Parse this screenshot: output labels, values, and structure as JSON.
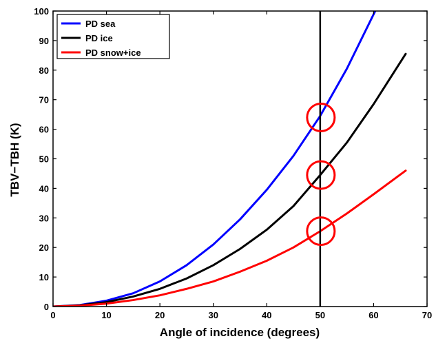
{
  "chart_data": {
    "type": "line",
    "title": "",
    "xlabel": "Angle of incidence (degrees)",
    "ylabel": "TBV−TBH (K)",
    "xlim": [
      0,
      70
    ],
    "ylim": [
      0,
      100
    ],
    "x_ticks": [
      0,
      10,
      20,
      30,
      40,
      50,
      60,
      70
    ],
    "y_ticks": [
      0,
      10,
      20,
      30,
      40,
      50,
      60,
      70,
      80,
      90,
      100
    ],
    "grid": false,
    "legend_position": "top-left",
    "series": [
      {
        "name": "PD sea",
        "color": "#0000ff",
        "x": [
          0,
          5,
          10,
          15,
          20,
          25,
          30,
          35,
          40,
          45,
          50,
          55,
          60.3
        ],
        "y": [
          0,
          0.5,
          2,
          4.5,
          8.5,
          14,
          21,
          29.5,
          39.5,
          51,
          64.5,
          80.5,
          100
        ]
      },
      {
        "name": "PD ice",
        "color": "#000000",
        "x": [
          0,
          5,
          10,
          15,
          20,
          25,
          30,
          35,
          40,
          45,
          50,
          55,
          60,
          66
        ],
        "y": [
          0,
          0.4,
          1.5,
          3.4,
          6,
          9.5,
          14,
          19.5,
          26,
          34,
          44.5,
          55.5,
          68.5,
          85.5
        ]
      },
      {
        "name": "PD snow+ice",
        "color": "#ff0000",
        "x": [
          0,
          5,
          10,
          15,
          20,
          25,
          30,
          35,
          40,
          45,
          50,
          55,
          60,
          66
        ],
        "y": [
          0,
          0.3,
          1,
          2.2,
          3.8,
          6,
          8.5,
          11.8,
          15.5,
          20,
          25.5,
          31.5,
          38,
          46
        ]
      }
    ],
    "annotations": {
      "vertical_line_x": 50,
      "circles": [
        {
          "x": 50,
          "y": 64,
          "color": "#ff0000"
        },
        {
          "x": 50,
          "y": 44.5,
          "color": "#ff0000"
        },
        {
          "x": 50,
          "y": 25.5,
          "color": "#ff0000"
        }
      ]
    }
  }
}
